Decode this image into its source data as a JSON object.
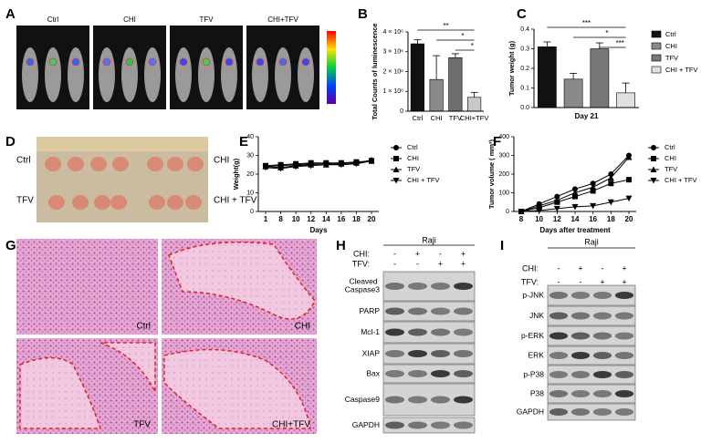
{
  "panel_letters": [
    "A",
    "B",
    "C",
    "D",
    "E",
    "F",
    "G",
    "H",
    "I"
  ],
  "panel_a": {
    "groups": [
      "Ctrl",
      "CHI",
      "TFV",
      "CHI+TFV"
    ]
  },
  "chart_data": [
    {
      "type": "bar",
      "ylabel": "Total Counts of luminescence",
      "categories": [
        "Ctrl",
        "CHI",
        "TFV",
        "CHI+TFV"
      ],
      "values": [
        3400000,
        1600000,
        2700000,
        700000
      ],
      "errors": [
        200000,
        1200000,
        200000,
        250000
      ],
      "colors": [
        "#111111",
        "#8a8a8a",
        "#6e6e6e",
        "#c8c8c8"
      ],
      "ylim": [
        0,
        4000000
      ],
      "yticks": [
        0,
        {
          "value": 1000000,
          "label": "1 × 10⁶"
        },
        {
          "value": 2000000,
          "label": "2 × 10⁶"
        },
        {
          "value": 3000000,
          "label": "3 × 10⁶"
        },
        {
          "value": 4000000,
          "label": "4 × 10⁶"
        }
      ],
      "comparisons": [
        {
          "label": "**",
          "pair": [
            0,
            3
          ]
        },
        {
          "label": "*",
          "pair": [
            1,
            3
          ]
        },
        {
          "label": "*",
          "pair": [
            2,
            3
          ]
        }
      ]
    },
    {
      "type": "bar",
      "ylabel": "Tumor weight (g)",
      "xlabel": "Day 21",
      "categories": [
        "Ctrl",
        "CHI",
        "TFV",
        "CHI + TFV"
      ],
      "values": [
        0.31,
        0.145,
        0.3,
        0.075
      ],
      "errors": [
        0.025,
        0.03,
        0.03,
        0.05
      ],
      "colors": [
        "#111111",
        "#8a8a8a",
        "#777777",
        "#e0e0e0"
      ],
      "ylim": [
        0,
        0.4
      ],
      "yticks": [
        {
          "value": 0,
          "label": "0.0"
        },
        0.1,
        0.2,
        0.3,
        0.4
      ],
      "legend": "right",
      "comparisons": [
        {
          "label": "***",
          "pair": [
            0,
            3
          ]
        },
        {
          "label": "*",
          "pair": [
            1,
            3
          ]
        },
        {
          "label": "***",
          "pair": [
            2,
            3
          ]
        }
      ]
    },
    {
      "type": "line",
      "ylabel": "Weight(g)",
      "xlabel": "Days",
      "categories": [
        "1",
        "8",
        "10",
        "12",
        "14",
        "16",
        "18",
        "20"
      ],
      "ylim": [
        0,
        40
      ],
      "yticks": [
        0,
        10,
        20,
        30,
        40
      ],
      "legend": "right",
      "series": [
        {
          "name": "Ctrl",
          "color": "#000000",
          "marker": "circle",
          "values": [
            24,
            24.5,
            25,
            25.5,
            25.5,
            26,
            26,
            27.5
          ]
        },
        {
          "name": "CHI",
          "color": "#000000",
          "marker": "square",
          "values": [
            24.5,
            25,
            25.5,
            26,
            26,
            26,
            26.5,
            27
          ]
        },
        {
          "name": "TFV",
          "color": "#000000",
          "marker": "triangle",
          "values": [
            24,
            23.5,
            24.5,
            25,
            25,
            25.5,
            26,
            27
          ]
        },
        {
          "name": "CHI + TFV",
          "color": "#000000",
          "marker": "triangle-down",
          "values": [
            23.5,
            23,
            24,
            24.5,
            25,
            25,
            25.5,
            27
          ]
        }
      ]
    },
    {
      "type": "line",
      "ylabel": "Tumor volume ( mm³)",
      "xlabel": "Days after treatment",
      "categories": [
        "8",
        "10",
        "12",
        "14",
        "16",
        "18",
        "20"
      ],
      "ylim": [
        0,
        400
      ],
      "yticks": [
        0,
        100,
        200,
        300,
        400
      ],
      "legend": "right",
      "series": [
        {
          "name": "Ctrl",
          "color": "#000000",
          "marker": "circle",
          "values": [
            0,
            40,
            80,
            120,
            150,
            200,
            300
          ]
        },
        {
          "name": "CHI",
          "color": "#000000",
          "marker": "square",
          "values": [
            0,
            20,
            50,
            80,
            110,
            150,
            170
          ]
        },
        {
          "name": "TFV",
          "color": "#000000",
          "marker": "triangle",
          "values": [
            0,
            30,
            60,
            100,
            130,
            180,
            290
          ]
        },
        {
          "name": "CHI + TFV",
          "color": "#000000",
          "marker": "triangle-down",
          "values": [
            0,
            5,
            15,
            25,
            30,
            50,
            70
          ]
        }
      ]
    }
  ],
  "panel_d": {
    "left_labels": [
      "Ctrl",
      "TFV"
    ],
    "right_labels": [
      "CHI",
      "CHI + TFV"
    ]
  },
  "panel_g": {
    "labels": [
      "Ctrl",
      "CHI",
      "TFV",
      "CHI+TFV"
    ]
  },
  "panel_h": {
    "cell_line": "Raji",
    "treatments": [
      {
        "name": "CHI:",
        "signs": [
          "-",
          "+",
          "-",
          "+"
        ]
      },
      {
        "name": "TFV:",
        "signs": [
          "-",
          "-",
          "+",
          "+"
        ]
      }
    ],
    "proteins": [
      "Cleaved Caspase3",
      "PARP",
      "Mcl-1",
      "XIAP",
      "Bax",
      "Caspase9",
      "GAPDH"
    ]
  },
  "panel_i": {
    "cell_line": "Raji",
    "treatments": [
      {
        "name": "CHI:",
        "signs": [
          "-",
          "+",
          "-",
          "+"
        ]
      },
      {
        "name": "TFV:",
        "signs": [
          "-",
          "-",
          "+",
          "+"
        ]
      }
    ],
    "proteins": [
      "p-JNK",
      "JNK",
      "p-ERK",
      "ERK",
      "p-P38",
      "P38",
      "GAPDH"
    ]
  }
}
